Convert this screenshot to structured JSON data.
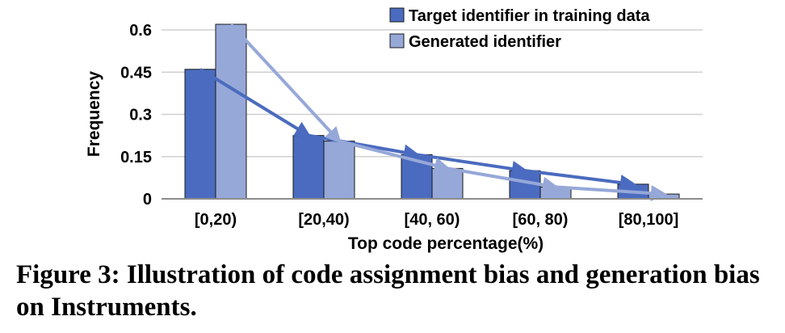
{
  "chart_data": {
    "type": "bar",
    "categories": [
      "[0,20)",
      "[20,40)",
      "[40, 60)",
      "[60, 80)",
      "[80,100]"
    ],
    "series": [
      {
        "name": "Target identifier in training data",
        "values": [
          0.46,
          0.225,
          0.157,
          0.1,
          0.052
        ],
        "color": "#4a6bbf"
      },
      {
        "name": "Generated identifier",
        "values": [
          0.62,
          0.205,
          0.108,
          0.042,
          0.017
        ],
        "color": "#96a8d8"
      }
    ],
    "trend_lines": true,
    "xlabel": "Top code percentage(%)",
    "ylabel": "Frequency",
    "yticks": [
      "0",
      "0.15",
      "0.3",
      "0.45",
      "0.6"
    ],
    "ylim": [
      0,
      0.6
    ],
    "grid": true,
    "legend_position": "top-right"
  },
  "caption": "Figure 3: Illustration of code assignment bias and generation bias on Instruments."
}
